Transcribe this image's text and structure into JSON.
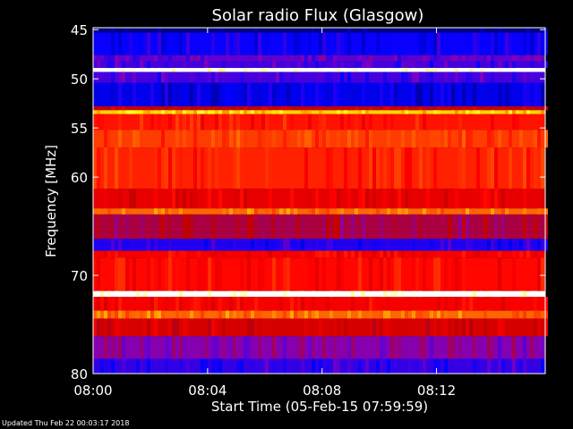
{
  "chart_data": {
    "type": "heatmap",
    "title": "Solar radio Flux (Glasgow)",
    "xlabel": "Start Time (05-Feb-15 07:59:59)",
    "ylabel": "Frequency [MHz]",
    "x_unit": "minutes after 08:00",
    "xlim": [
      0,
      15.8
    ],
    "ylim": [
      80,
      44.8
    ],
    "y_axis_inverted": true,
    "x_ticks": [
      {
        "value": 0,
        "label": "08:00"
      },
      {
        "value": 4,
        "label": "08:04"
      },
      {
        "value": 8,
        "label": "08:08"
      },
      {
        "value": 12,
        "label": "08:12"
      }
    ],
    "y_ticks": [
      {
        "value": 45,
        "label": "45"
      },
      {
        "value": 50,
        "label": "50"
      },
      {
        "value": 55,
        "label": "55"
      },
      {
        "value": 60,
        "label": "60"
      },
      {
        "value": 70,
        "label": "70"
      },
      {
        "value": 80,
        "label": "80"
      }
    ],
    "colormap": [
      "#000080",
      "#0000ff",
      "#8000c0",
      "#c00000",
      "#ff0000",
      "#ff6000",
      "#ffff00",
      "#ffffff"
    ],
    "frequency_bands": [
      {
        "from": 44.8,
        "to": 45.3,
        "level": 0.0
      },
      {
        "from": 45.3,
        "to": 47.6,
        "level": 0.15
      },
      {
        "from": 47.6,
        "to": 48.2,
        "level": 0.25
      },
      {
        "from": 48.2,
        "to": 48.9,
        "level": 0.22
      },
      {
        "from": 48.9,
        "to": 49.3,
        "level": 1.0
      },
      {
        "from": 49.3,
        "to": 50.4,
        "level": 0.22
      },
      {
        "from": 50.4,
        "to": 52.8,
        "level": 0.12
      },
      {
        "from": 52.8,
        "to": 53.2,
        "level": 0.45
      },
      {
        "from": 53.2,
        "to": 53.6,
        "level": 0.82
      },
      {
        "from": 53.6,
        "to": 55.2,
        "level": 0.6
      },
      {
        "from": 55.2,
        "to": 57.0,
        "level": 0.66
      },
      {
        "from": 57.0,
        "to": 61.2,
        "level": 0.62
      },
      {
        "from": 61.2,
        "to": 63.2,
        "level": 0.52
      },
      {
        "from": 63.2,
        "to": 63.8,
        "level": 0.72
      },
      {
        "from": 63.8,
        "to": 66.3,
        "level": 0.38
      },
      {
        "from": 66.3,
        "to": 67.5,
        "level": 0.18
      },
      {
        "from": 67.5,
        "to": 68.2,
        "level": 0.55
      },
      {
        "from": 68.2,
        "to": 71.6,
        "level": 0.58
      },
      {
        "from": 71.6,
        "to": 72.2,
        "level": 1.0
      },
      {
        "from": 72.2,
        "to": 73.6,
        "level": 0.55
      },
      {
        "from": 73.6,
        "to": 74.4,
        "level": 0.72
      },
      {
        "from": 74.4,
        "to": 76.2,
        "level": 0.48
      },
      {
        "from": 76.2,
        "to": 78.5,
        "level": 0.3
      },
      {
        "from": 78.5,
        "to": 80.0,
        "level": 0.2
      }
    ]
  },
  "footer": {
    "updated_text": "Updated Thu Feb 22 00:03:17 2018"
  }
}
